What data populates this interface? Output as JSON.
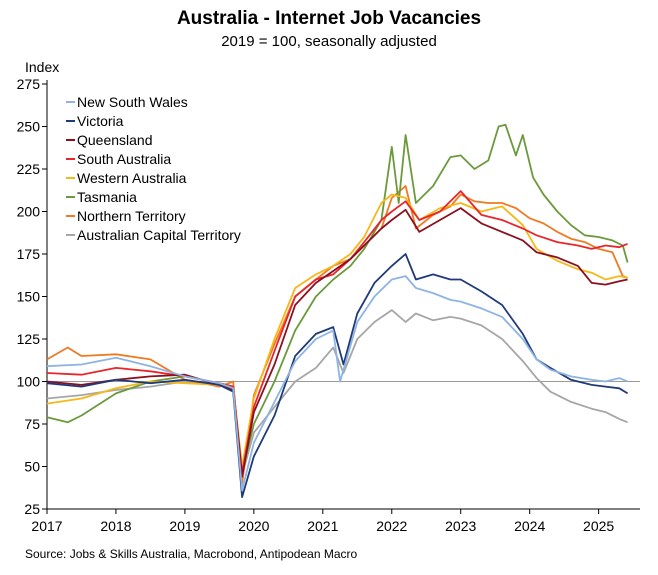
{
  "chart_data": {
    "type": "line",
    "title": "Australia - Internet Job Vacancies",
    "subtitle": "2019 = 100, seasonally adjusted",
    "ylabel": "Index",
    "xlabel": "",
    "source": "Source: Jobs & Skills Australia, Macrobond, Antipodean Macro",
    "ylim": [
      25,
      275
    ],
    "yticks": [
      25,
      50,
      75,
      100,
      125,
      150,
      175,
      200,
      225,
      250,
      275
    ],
    "xlim": [
      2017.0,
      2025.6
    ],
    "xticks": [
      "2017",
      "2018",
      "2019",
      "2020",
      "2021",
      "2022",
      "2023",
      "2024",
      "2025"
    ],
    "reference_line": 100,
    "legend_position": "top-left",
    "series": [
      {
        "name": "New South Wales",
        "color": "#8db4e2",
        "x": [
          2017.0,
          2017.5,
          2018.0,
          2018.5,
          2019.0,
          2019.5,
          2019.7,
          2019.83,
          2020.0,
          2020.3,
          2020.6,
          2020.9,
          2021.15,
          2021.25,
          2021.5,
          2021.75,
          2022.0,
          2022.2,
          2022.35,
          2022.6,
          2022.85,
          2023.0,
          2023.3,
          2023.6,
          2023.9,
          2024.1,
          2024.3,
          2024.6,
          2024.9,
          2025.1,
          2025.3,
          2025.42
        ],
        "y": [
          109,
          110,
          114,
          109,
          103,
          99,
          96,
          36,
          64,
          88,
          112,
          125,
          130,
          100,
          135,
          150,
          160,
          162,
          155,
          152,
          148,
          147,
          143,
          138,
          125,
          113,
          107,
          103,
          101,
          100,
          102,
          100
        ]
      },
      {
        "name": "Victoria",
        "color": "#1f3a7a",
        "x": [
          2017.0,
          2017.5,
          2018.0,
          2018.5,
          2019.0,
          2019.5,
          2019.7,
          2019.83,
          2020.0,
          2020.3,
          2020.6,
          2020.9,
          2021.15,
          2021.3,
          2021.5,
          2021.75,
          2022.0,
          2022.2,
          2022.35,
          2022.6,
          2022.85,
          2023.0,
          2023.3,
          2023.6,
          2023.9,
          2024.1,
          2024.3,
          2024.6,
          2024.9,
          2025.1,
          2025.3,
          2025.42
        ],
        "y": [
          99,
          97,
          101,
          99,
          101,
          98,
          94,
          32,
          56,
          80,
          115,
          128,
          132,
          110,
          140,
          158,
          168,
          175,
          160,
          163,
          160,
          160,
          153,
          145,
          128,
          113,
          108,
          101,
          98,
          97,
          96,
          93
        ]
      },
      {
        "name": "Queensland",
        "color": "#8b0f1f",
        "x": [
          2017.0,
          2017.5,
          2018.0,
          2018.5,
          2019.0,
          2019.5,
          2019.7,
          2019.83,
          2020.0,
          2020.3,
          2020.6,
          2020.9,
          2021.15,
          2021.4,
          2021.6,
          2021.85,
          2022.0,
          2022.2,
          2022.4,
          2022.7,
          2023.0,
          2023.3,
          2023.6,
          2023.9,
          2024.1,
          2024.4,
          2024.7,
          2024.9,
          2025.1,
          2025.3,
          2025.42
        ],
        "y": [
          100,
          98,
          101,
          103,
          104,
          98,
          95,
          44,
          82,
          110,
          145,
          158,
          165,
          172,
          180,
          190,
          195,
          201,
          188,
          195,
          202,
          193,
          188,
          183,
          176,
          173,
          168,
          158,
          157,
          159,
          160
        ]
      },
      {
        "name": "South Australia",
        "color": "#e8262b",
        "x": [
          2017.0,
          2017.5,
          2018.0,
          2018.5,
          2019.0,
          2019.5,
          2019.7,
          2019.83,
          2020.0,
          2020.3,
          2020.6,
          2020.9,
          2021.15,
          2021.4,
          2021.6,
          2021.85,
          2022.0,
          2022.2,
          2022.4,
          2022.7,
          2023.0,
          2023.3,
          2023.6,
          2023.9,
          2024.1,
          2024.4,
          2024.7,
          2024.9,
          2025.1,
          2025.3,
          2025.42
        ],
        "y": [
          105,
          104,
          108,
          106,
          103,
          99,
          97,
          46,
          85,
          118,
          150,
          160,
          163,
          172,
          182,
          195,
          200,
          206,
          195,
          200,
          212,
          198,
          195,
          190,
          186,
          182,
          180,
          178,
          180,
          179,
          181
        ]
      },
      {
        "name": "Western Australia",
        "color": "#f6b816",
        "x": [
          2017.0,
          2017.5,
          2018.0,
          2018.5,
          2019.0,
          2019.5,
          2019.7,
          2019.83,
          2020.0,
          2020.3,
          2020.6,
          2020.9,
          2021.15,
          2021.4,
          2021.6,
          2021.85,
          2022.0,
          2022.2,
          2022.4,
          2022.7,
          2023.0,
          2023.3,
          2023.6,
          2023.9,
          2024.1,
          2024.4,
          2024.7,
          2024.9,
          2025.1,
          2025.3,
          2025.42
        ],
        "y": [
          87,
          90,
          96,
          100,
          99,
          98,
          96,
          50,
          90,
          125,
          155,
          163,
          168,
          175,
          185,
          205,
          210,
          208,
          195,
          202,
          205,
          200,
          203,
          192,
          178,
          171,
          166,
          164,
          160,
          162,
          161
        ]
      },
      {
        "name": "Tasmania",
        "color": "#6b9a3d",
        "x": [
          2017.0,
          2017.3,
          2017.5,
          2018.0,
          2018.5,
          2019.0,
          2019.5,
          2019.7,
          2019.83,
          2020.0,
          2020.3,
          2020.6,
          2020.9,
          2021.15,
          2021.4,
          2021.6,
          2021.85,
          2022.0,
          2022.1,
          2022.2,
          2022.35,
          2022.6,
          2022.85,
          2023.0,
          2023.2,
          2023.4,
          2023.55,
          2023.65,
          2023.8,
          2023.9,
          2024.05,
          2024.2,
          2024.4,
          2024.6,
          2024.8,
          2025.0,
          2025.2,
          2025.35,
          2025.42
        ],
        "y": [
          79,
          76,
          80,
          93,
          100,
          103,
          99,
          97,
          47,
          75,
          100,
          130,
          150,
          160,
          168,
          178,
          195,
          238,
          205,
          245,
          205,
          215,
          232,
          233,
          225,
          230,
          250,
          251,
          233,
          245,
          220,
          210,
          200,
          192,
          186,
          185,
          183,
          180,
          170
        ]
      },
      {
        "name": "Northern Territory",
        "color": "#f07a22",
        "x": [
          2017.0,
          2017.3,
          2017.5,
          2018.0,
          2018.5,
          2019.0,
          2019.5,
          2019.7,
          2019.83,
          2020.0,
          2020.3,
          2020.6,
          2020.9,
          2021.15,
          2021.4,
          2021.6,
          2021.85,
          2022.0,
          2022.2,
          2022.35,
          2022.6,
          2022.85,
          2023.0,
          2023.2,
          2023.4,
          2023.6,
          2023.8,
          2024.0,
          2024.2,
          2024.4,
          2024.6,
          2024.8,
          2025.0,
          2025.2,
          2025.35,
          2025.42
        ],
        "y": [
          113,
          120,
          115,
          116,
          113,
          101,
          97,
          100,
          40,
          92,
          122,
          150,
          160,
          168,
          172,
          180,
          190,
          208,
          215,
          190,
          198,
          203,
          210,
          206,
          205,
          205,
          202,
          196,
          193,
          188,
          184,
          182,
          178,
          176,
          162,
          161
        ]
      },
      {
        "name": "Australian Capital Territory",
        "color": "#a6a6a6",
        "x": [
          2017.0,
          2017.5,
          2018.0,
          2018.5,
          2019.0,
          2019.5,
          2019.7,
          2019.83,
          2020.0,
          2020.3,
          2020.6,
          2020.9,
          2021.15,
          2021.3,
          2021.5,
          2021.75,
          2022.0,
          2022.2,
          2022.35,
          2022.6,
          2022.85,
          2023.0,
          2023.3,
          2023.6,
          2023.9,
          2024.1,
          2024.3,
          2024.6,
          2024.9,
          2025.1,
          2025.3,
          2025.42
        ],
        "y": [
          90,
          92,
          95,
          97,
          100,
          99,
          97,
          45,
          70,
          85,
          100,
          108,
          120,
          105,
          125,
          135,
          142,
          135,
          140,
          136,
          138,
          137,
          133,
          125,
          112,
          102,
          94,
          88,
          84,
          82,
          78,
          76
        ]
      }
    ]
  }
}
